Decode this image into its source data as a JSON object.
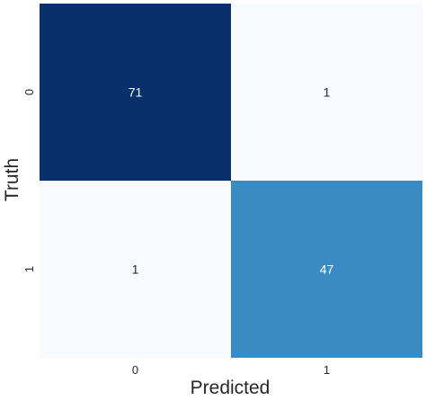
{
  "chart_data": {
    "type": "heatmap",
    "title": "",
    "xlabel": "Predicted",
    "ylabel": "Truth",
    "x_categories": [
      "0",
      "1"
    ],
    "y_categories": [
      "0",
      "1"
    ],
    "values": [
      [
        71,
        1
      ],
      [
        1,
        47
      ]
    ],
    "colormap": "Blues",
    "value_range": [
      1,
      71
    ],
    "grid": false,
    "legend": "none",
    "colors": {
      "cell_0_0": "#08306b",
      "cell_0_1": "#f7fbff",
      "cell_1_0": "#f7fbff",
      "cell_1_1": "#3a8ac4",
      "dark_text": "#262626",
      "light_text": "#ffffff"
    }
  }
}
